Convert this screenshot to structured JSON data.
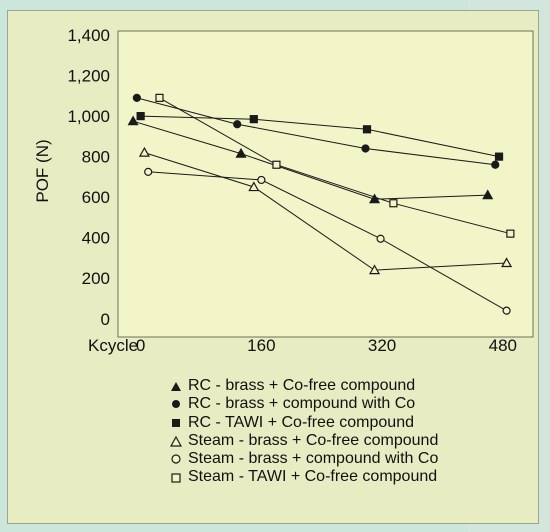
{
  "colors": {
    "background": "#cde6dc",
    "panel": "#e8ecc2",
    "plot_area": "#f2f5c8",
    "ink": "#1a1a1a"
  },
  "chart_data": {
    "type": "line",
    "title": "",
    "xlabel": "Kcycle",
    "ylabel": "POF (N)",
    "x_ticks": [
      0,
      160,
      320,
      480
    ],
    "y_ticks": [
      0,
      200,
      400,
      600,
      800,
      1000,
      1200,
      1400
    ],
    "y_tick_labels": [
      "0",
      "200",
      "400",
      "600",
      "800",
      "1,000",
      "1,200",
      "1,400"
    ],
    "xlim": [
      -30,
      520
    ],
    "ylim": [
      -90,
      1420
    ],
    "grid": false,
    "legend_position": "bottom-right, below plot",
    "series": [
      {
        "name": "RC - brass + Co-free compound",
        "marker": "filled-triangle",
        "x": [
          -10,
          133,
          310,
          460
        ],
        "y": [
          975,
          815,
          590,
          610
        ]
      },
      {
        "name": "RC - brass + compound with Co",
        "marker": "filled-circle",
        "x": [
          -5,
          128,
          298,
          470
        ],
        "y": [
          1090,
          960,
          840,
          760
        ]
      },
      {
        "name": "RC - TAWI + Co-free compound",
        "marker": "filled-square",
        "x": [
          0,
          150,
          300,
          475
        ],
        "y": [
          1000,
          985,
          935,
          800
        ]
      },
      {
        "name": "Steam - brass + Co-free compound",
        "marker": "open-triangle",
        "x": [
          5,
          150,
          310,
          485
        ],
        "y": [
          820,
          650,
          240,
          275
        ]
      },
      {
        "name": "Steam - brass + compound with Co",
        "marker": "open-circle",
        "x": [
          10,
          160,
          318,
          485
        ],
        "y": [
          725,
          685,
          395,
          40
        ]
      },
      {
        "name": "Steam - TAWI + Co-free compound",
        "marker": "open-square",
        "x": [
          25,
          180,
          335,
          490
        ],
        "y": [
          1090,
          760,
          570,
          420
        ]
      }
    ]
  }
}
